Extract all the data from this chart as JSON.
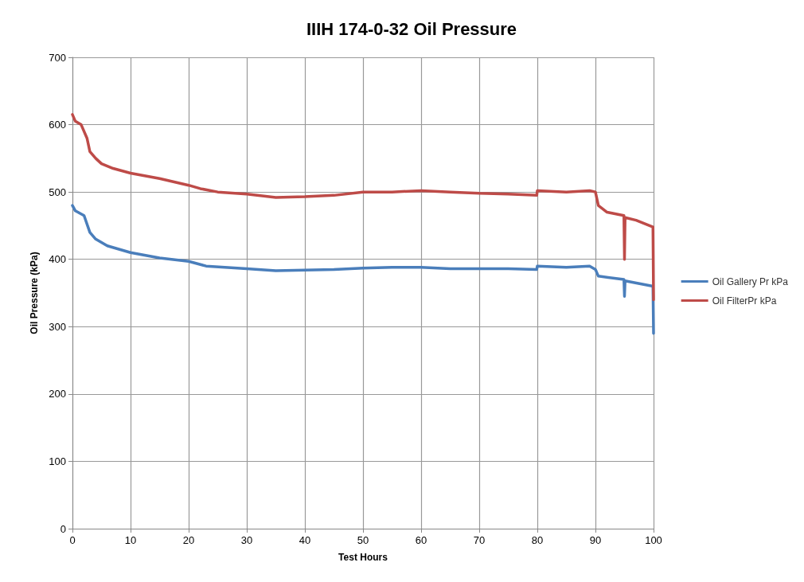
{
  "chart_data": {
    "type": "line",
    "title": "IIIH 174-0-32 Oil Pressure",
    "xlabel": "Test Hours",
    "ylabel": "Oil Pressure (kPa)",
    "xlim": [
      0,
      100
    ],
    "xticks": [
      0,
      10,
      20,
      30,
      40,
      50,
      60,
      70,
      80,
      90,
      100
    ],
    "ylim": [
      0,
      700
    ],
    "yticks": [
      0,
      100,
      200,
      300,
      400,
      500,
      600,
      700
    ],
    "grid": true,
    "legend": "right",
    "marker": "none",
    "line_style": "solid",
    "series": [
      {
        "name": "Oil Gallery Pr kPa",
        "color": "#4a7ebb",
        "x": [
          0,
          0.5,
          2,
          3,
          4,
          6,
          10,
          15,
          20,
          23,
          30,
          35,
          40,
          45,
          50,
          55,
          60,
          65,
          70,
          75,
          79.9,
          80,
          85,
          89,
          90,
          90.5,
          94.9,
          95,
          95.1,
          99.9,
          100
        ],
        "values": [
          480,
          472,
          465,
          440,
          430,
          420,
          410,
          402,
          397,
          390,
          386,
          383,
          384,
          385,
          387,
          388,
          388,
          386,
          386,
          386,
          385,
          390,
          388,
          390,
          385,
          375,
          370,
          345,
          368,
          360,
          290
        ]
      },
      {
        "name": "Oil FilterPr kPa",
        "color": "#be4b48",
        "x": [
          0,
          0.5,
          1.5,
          2.5,
          3,
          4,
          5,
          7,
          10,
          15,
          20,
          22,
          25,
          30,
          35,
          40,
          45,
          50,
          55,
          60,
          65,
          70,
          75,
          79.9,
          80,
          85,
          89,
          90,
          90.5,
          92,
          94.9,
          95,
          95.1,
          97,
          99.9,
          100
        ],
        "values": [
          615,
          605,
          600,
          580,
          560,
          550,
          542,
          535,
          528,
          520,
          510,
          505,
          500,
          497,
          492,
          493,
          495,
          500,
          500,
          502,
          500,
          498,
          497,
          495,
          502,
          500,
          502,
          500,
          480,
          470,
          465,
          400,
          462,
          458,
          448,
          340
        ]
      }
    ]
  }
}
